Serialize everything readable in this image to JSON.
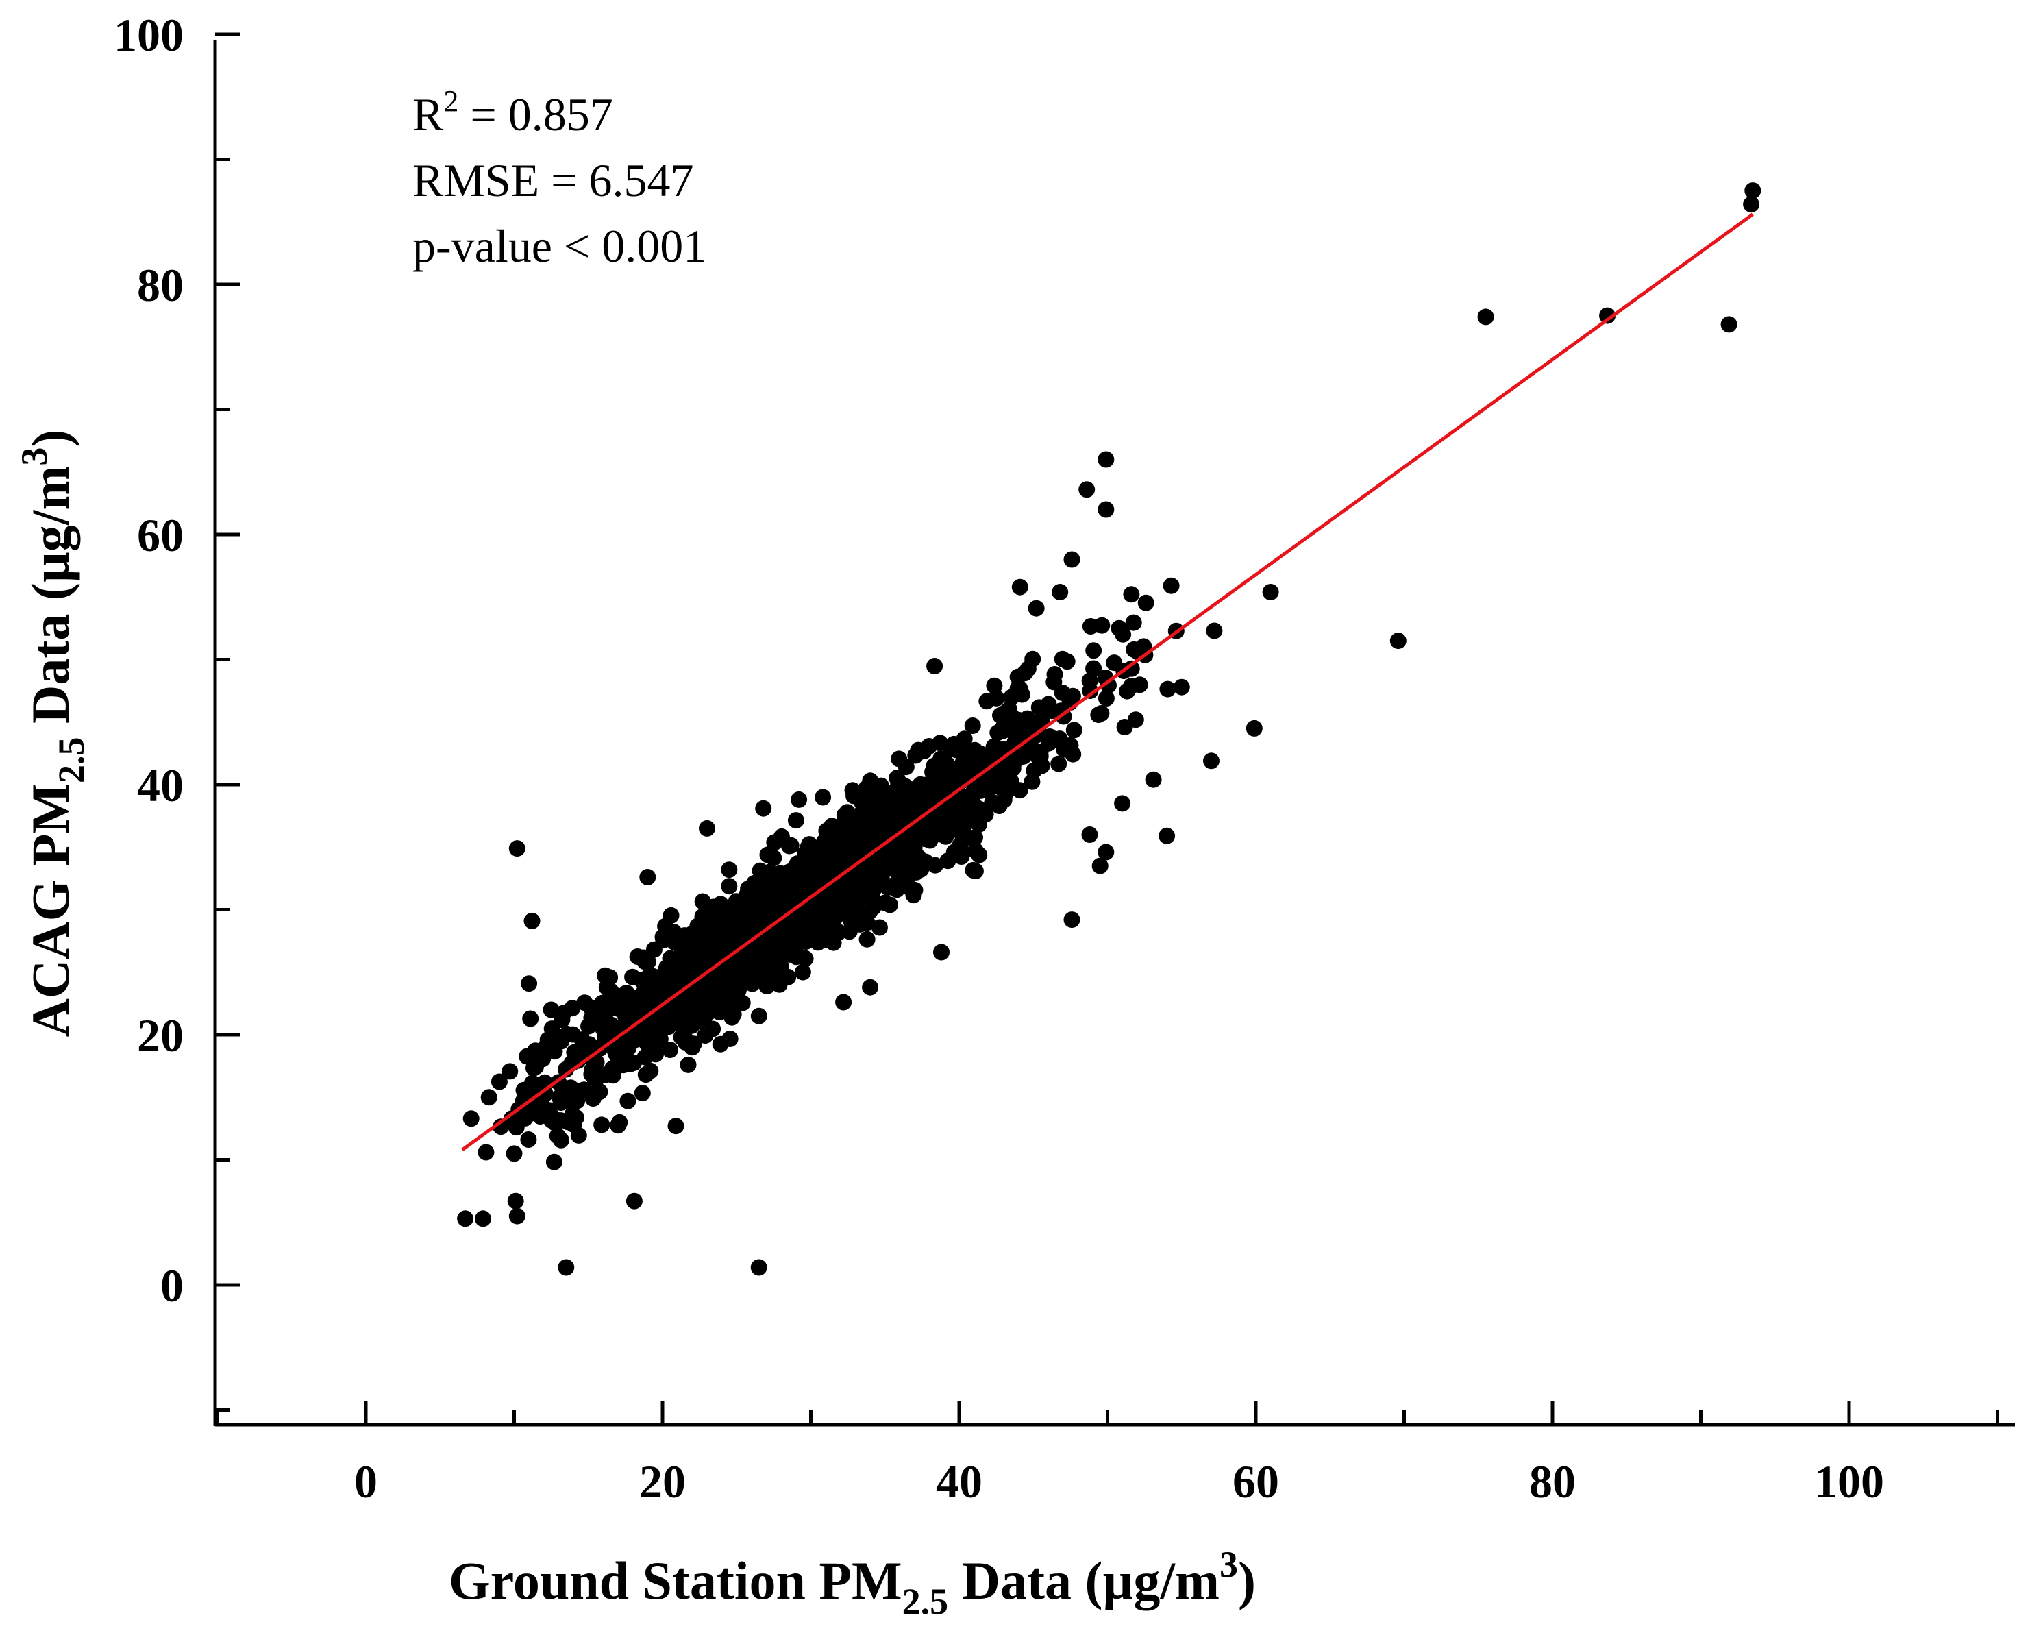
{
  "chart_data": {
    "type": "scatter",
    "title": "",
    "xlabel": {
      "pre": "Ground Station PM",
      "sub": "2.5",
      "mid": " Data (µg/m",
      "sup": "3",
      "post": ")"
    },
    "ylabel": {
      "pre": "ACAG PM",
      "sub": "2.5",
      "mid": " Data (µg/m",
      "sup": "3",
      "post": ")"
    },
    "xlim": [
      -10,
      110
    ],
    "ylim": [
      -10,
      100
    ],
    "xticks": [
      "0",
      "20",
      "40",
      "60",
      "80",
      "100"
    ],
    "yticks": [
      "0",
      "20",
      "40",
      "60",
      "80",
      "100"
    ],
    "grid": false,
    "annotations": {
      "r2_pre": "R",
      "r2_sup": "2",
      "r2_post": " = 0.857",
      "rmse": "RMSE = 6.547",
      "pvalue": "p-value < 0.001"
    },
    "point_color": "#000000",
    "line_color": "#e8141c",
    "fit_line": {
      "x": [
        6.5,
        93.5
      ],
      "y": [
        10.8,
        85.6
      ]
    },
    "outliers": [
      [
        93.5,
        87.5
      ],
      [
        93.4,
        86.4
      ],
      [
        75.5,
        77.4
      ],
      [
        83.7,
        77.5
      ],
      [
        91.9,
        76.8
      ],
      [
        69.6,
        51.5
      ],
      [
        61.0,
        55.4
      ],
      [
        59.9,
        44.5
      ],
      [
        57.2,
        52.3
      ],
      [
        57.0,
        41.9
      ],
      [
        54.0,
        35.9
      ],
      [
        49.9,
        66.0
      ],
      [
        48.6,
        63.6
      ],
      [
        49.9,
        62.0
      ],
      [
        47.6,
        58.0
      ],
      [
        47.6,
        29.2
      ],
      [
        49.5,
        33.5
      ],
      [
        49.9,
        34.6
      ],
      [
        48.8,
        36.0
      ],
      [
        34.0,
        23.8
      ],
      [
        32.2,
        22.6
      ],
      [
        26.5,
        1.4
      ],
      [
        13.5,
        1.4
      ],
      [
        18.1,
        6.7
      ],
      [
        10.2,
        34.9
      ],
      [
        11.2,
        29.1
      ],
      [
        10.1,
        6.7
      ],
      [
        10.2,
        5.5
      ],
      [
        6.7,
        5.3
      ],
      [
        7.9,
        5.3
      ],
      [
        7.1,
        13.3
      ],
      [
        10.0,
        10.5
      ],
      [
        20.9,
        12.7
      ],
      [
        23.0,
        36.5
      ],
      [
        26.8,
        38.1
      ],
      [
        19.0,
        32.6
      ],
      [
        38.8,
        26.6
      ],
      [
        44.1,
        55.8
      ],
      [
        46.8,
        55.4
      ],
      [
        51.0,
        38.5
      ],
      [
        53.1,
        40.4
      ],
      [
        12.5,
        22.0
      ],
      [
        11.0,
        24.1
      ],
      [
        8.3,
        15.0
      ],
      [
        15.9,
        12.8
      ],
      [
        17.1,
        13.0
      ],
      [
        22.0,
        19.0
      ],
      [
        55.0,
        47.8
      ],
      [
        54.3,
        55.9
      ],
      [
        45.2,
        54.1
      ],
      [
        8.1,
        10.6
      ],
      [
        11.5,
        16.0
      ]
    ],
    "cluster": {
      "n": 1500,
      "x_min": 9,
      "x_max": 55,
      "slope": 0.86,
      "intercept": 5.2,
      "spread": 2.5
    }
  }
}
